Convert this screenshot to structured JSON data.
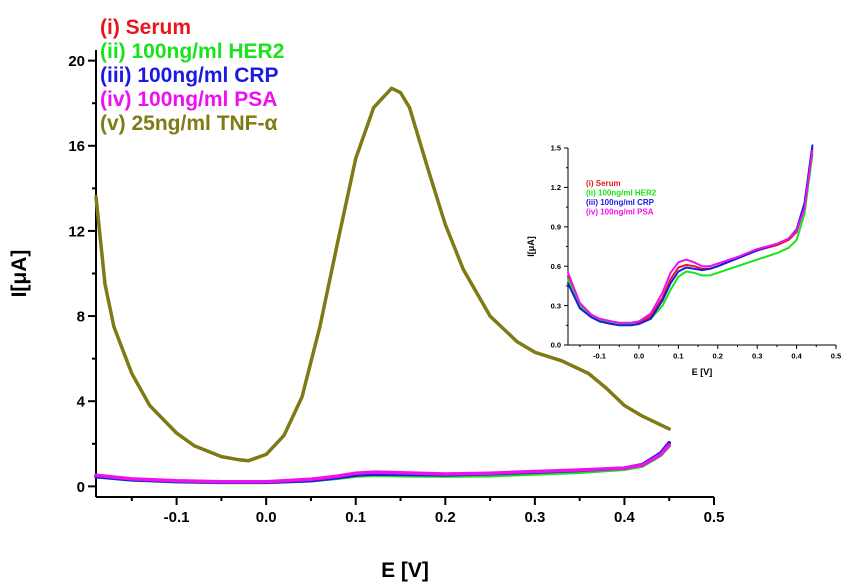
{
  "chart_data": [
    {
      "type": "line",
      "xlabel": "E [V]",
      "ylabel": "I[μA]",
      "xlim": [
        -0.19,
        0.5
      ],
      "ylim": [
        -0.5,
        20.5
      ],
      "xticks": [
        -0.1,
        0.0,
        0.1,
        0.2,
        0.3,
        0.4,
        0.5
      ],
      "xtick_labels": [
        "-0.1",
        "0.0",
        "0.1",
        "0.2",
        "0.3",
        "0.4",
        "0.5"
      ],
      "yticks": [
        0,
        4,
        8,
        12,
        16,
        20
      ],
      "ytick_labels": [
        "0",
        "4",
        "8",
        "12",
        "16",
        "20"
      ],
      "grid": false,
      "legend_position": "top-left",
      "series": [
        {
          "name": "(i) Serum",
          "color": "#e8161b",
          "x": [
            -0.19,
            -0.15,
            -0.1,
            -0.05,
            0.0,
            0.05,
            0.08,
            0.1,
            0.12,
            0.15,
            0.2,
            0.25,
            0.3,
            0.35,
            0.4,
            0.42,
            0.44,
            0.45
          ],
          "y": [
            0.5,
            0.33,
            0.24,
            0.2,
            0.2,
            0.3,
            0.44,
            0.57,
            0.62,
            0.6,
            0.56,
            0.6,
            0.68,
            0.75,
            0.85,
            1.0,
            1.5,
            2.0
          ]
        },
        {
          "name": "(ii) 100ng/ml HER2",
          "color": "#19e319",
          "x": [
            -0.19,
            -0.15,
            -0.1,
            -0.05,
            0.0,
            0.05,
            0.08,
            0.1,
            0.12,
            0.15,
            0.2,
            0.25,
            0.3,
            0.35,
            0.4,
            0.42,
            0.44,
            0.45
          ],
          "y": [
            0.45,
            0.3,
            0.22,
            0.18,
            0.18,
            0.26,
            0.38,
            0.48,
            0.52,
            0.5,
            0.48,
            0.5,
            0.58,
            0.66,
            0.8,
            0.95,
            1.45,
            1.9
          ]
        },
        {
          "name": "(iii) 100ng/ml CRP",
          "color": "#1a1ae0",
          "x": [
            -0.19,
            -0.15,
            -0.1,
            -0.05,
            0.0,
            0.05,
            0.08,
            0.1,
            0.12,
            0.15,
            0.2,
            0.25,
            0.3,
            0.35,
            0.4,
            0.42,
            0.44,
            0.45
          ],
          "y": [
            0.46,
            0.31,
            0.23,
            0.19,
            0.19,
            0.27,
            0.41,
            0.53,
            0.58,
            0.56,
            0.54,
            0.59,
            0.67,
            0.75,
            0.86,
            1.02,
            1.55,
            2.05
          ]
        },
        {
          "name": "(iv) 100ng/ml PSA",
          "color": "#ee10ee",
          "x": [
            -0.19,
            -0.15,
            -0.1,
            -0.05,
            0.0,
            0.05,
            0.08,
            0.1,
            0.12,
            0.15,
            0.2,
            0.25,
            0.3,
            0.35,
            0.4,
            0.42,
            0.44,
            0.45
          ],
          "y": [
            0.52,
            0.35,
            0.26,
            0.22,
            0.22,
            0.33,
            0.48,
            0.62,
            0.67,
            0.64,
            0.58,
            0.62,
            0.7,
            0.77,
            0.86,
            1.0,
            1.48,
            1.95
          ]
        },
        {
          "name": "(v) 25ng/ml TNF-α",
          "color": "#7f7a14",
          "x": [
            -0.19,
            -0.18,
            -0.17,
            -0.15,
            -0.13,
            -0.1,
            -0.08,
            -0.05,
            -0.03,
            -0.02,
            0.0,
            0.02,
            0.04,
            0.06,
            0.08,
            0.1,
            0.12,
            0.14,
            0.15,
            0.16,
            0.18,
            0.2,
            0.22,
            0.25,
            0.28,
            0.3,
            0.33,
            0.36,
            0.38,
            0.4,
            0.42,
            0.45
          ],
          "y": [
            13.6,
            9.5,
            7.5,
            5.3,
            3.8,
            2.5,
            1.9,
            1.4,
            1.25,
            1.2,
            1.5,
            2.4,
            4.2,
            7.5,
            11.5,
            15.4,
            17.8,
            18.7,
            18.5,
            17.8,
            15.0,
            12.3,
            10.2,
            8.0,
            6.8,
            6.3,
            5.9,
            5.3,
            4.6,
            3.8,
            3.3,
            2.7
          ]
        }
      ]
    },
    {
      "type": "line",
      "xlabel": "E [V]",
      "ylabel": "I[μA]",
      "xlim": [
        -0.18,
        0.5
      ],
      "ylim": [
        0.0,
        1.5
      ],
      "xticks": [
        -0.1,
        0.0,
        0.1,
        0.2,
        0.3,
        0.4,
        0.5
      ],
      "xtick_labels": [
        "-0.1",
        "0.0",
        "0.1",
        "0.2",
        "0.3",
        "0.4",
        "0.5"
      ],
      "yticks": [
        0.0,
        0.3,
        0.6,
        0.9,
        1.2,
        1.5
      ],
      "ytick_labels": [
        "0.0",
        "0.3",
        "0.6",
        "0.9",
        "1.2",
        "1.5"
      ],
      "grid": false,
      "legend_position": "top-left",
      "series": [
        {
          "name": "(i) Serum",
          "color": "#e8161b",
          "x": [
            -0.18,
            -0.15,
            -0.12,
            -0.1,
            -0.07,
            -0.05,
            -0.02,
            0.0,
            0.03,
            0.06,
            0.08,
            0.1,
            0.12,
            0.14,
            0.16,
            0.18,
            0.2,
            0.25,
            0.3,
            0.35,
            0.38,
            0.4,
            0.42,
            0.44
          ],
          "y": [
            0.52,
            0.3,
            0.22,
            0.19,
            0.17,
            0.16,
            0.16,
            0.17,
            0.22,
            0.36,
            0.5,
            0.59,
            0.61,
            0.6,
            0.58,
            0.58,
            0.6,
            0.66,
            0.72,
            0.76,
            0.8,
            0.86,
            1.05,
            1.5
          ]
        },
        {
          "name": "(ii) 100ng/ml HER2",
          "color": "#19e319",
          "x": [
            -0.18,
            -0.15,
            -0.12,
            -0.1,
            -0.07,
            -0.05,
            -0.02,
            0.0,
            0.03,
            0.06,
            0.08,
            0.1,
            0.12,
            0.14,
            0.16,
            0.18,
            0.2,
            0.25,
            0.3,
            0.35,
            0.38,
            0.4,
            0.42,
            0.44
          ],
          "y": [
            0.5,
            0.3,
            0.22,
            0.19,
            0.17,
            0.16,
            0.16,
            0.16,
            0.2,
            0.3,
            0.42,
            0.52,
            0.56,
            0.55,
            0.53,
            0.53,
            0.55,
            0.6,
            0.65,
            0.7,
            0.74,
            0.8,
            1.0,
            1.45
          ]
        },
        {
          "name": "(iii) 100ng/ml CRP",
          "color": "#1a1ae0",
          "x": [
            -0.18,
            -0.15,
            -0.12,
            -0.1,
            -0.07,
            -0.05,
            -0.02,
            0.0,
            0.03,
            0.06,
            0.08,
            0.1,
            0.12,
            0.14,
            0.16,
            0.18,
            0.2,
            0.25,
            0.3,
            0.35,
            0.38,
            0.4,
            0.42,
            0.44
          ],
          "y": [
            0.47,
            0.28,
            0.21,
            0.18,
            0.16,
            0.15,
            0.15,
            0.16,
            0.2,
            0.34,
            0.47,
            0.56,
            0.59,
            0.58,
            0.57,
            0.58,
            0.6,
            0.66,
            0.72,
            0.77,
            0.81,
            0.88,
            1.08,
            1.52
          ]
        },
        {
          "name": "(iv) 100ng/ml PSA",
          "color": "#ee10ee",
          "x": [
            -0.18,
            -0.15,
            -0.12,
            -0.1,
            -0.07,
            -0.05,
            -0.02,
            0.0,
            0.03,
            0.06,
            0.08,
            0.1,
            0.12,
            0.14,
            0.16,
            0.18,
            0.2,
            0.25,
            0.3,
            0.35,
            0.38,
            0.4,
            0.42,
            0.44
          ],
          "y": [
            0.55,
            0.32,
            0.23,
            0.2,
            0.18,
            0.17,
            0.17,
            0.18,
            0.24,
            0.4,
            0.55,
            0.63,
            0.65,
            0.63,
            0.6,
            0.6,
            0.62,
            0.67,
            0.73,
            0.77,
            0.81,
            0.87,
            1.04,
            1.48
          ]
        }
      ]
    }
  ]
}
